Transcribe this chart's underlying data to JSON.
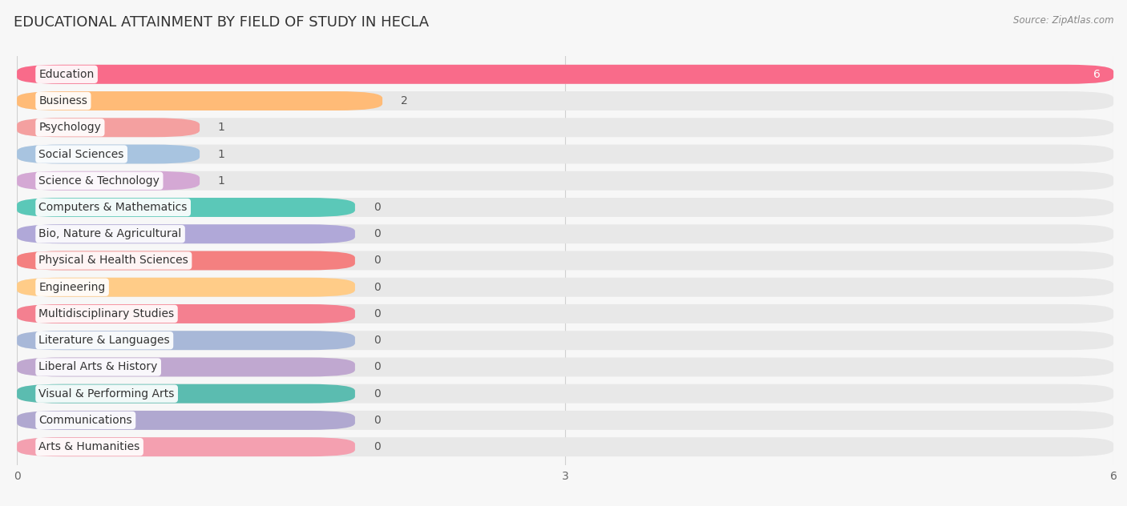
{
  "title": "EDUCATIONAL ATTAINMENT BY FIELD OF STUDY IN HECLA",
  "source": "Source: ZipAtlas.com",
  "categories": [
    "Education",
    "Business",
    "Psychology",
    "Social Sciences",
    "Science & Technology",
    "Computers & Mathematics",
    "Bio, Nature & Agricultural",
    "Physical & Health Sciences",
    "Engineering",
    "Multidisciplinary Studies",
    "Literature & Languages",
    "Liberal Arts & History",
    "Visual & Performing Arts",
    "Communications",
    "Arts & Humanities"
  ],
  "values": [
    6,
    2,
    1,
    1,
    1,
    0,
    0,
    0,
    0,
    0,
    0,
    0,
    0,
    0,
    0
  ],
  "colors": [
    "#F96B8A",
    "#FFBB77",
    "#F4A0A0",
    "#A8C4E0",
    "#D4A8D4",
    "#5BC8B8",
    "#B0A8D8",
    "#F48080",
    "#FFCC88",
    "#F48090",
    "#A8B8D8",
    "#C0A8D0",
    "#5BBCB0",
    "#B0A8D0",
    "#F4A0B0"
  ],
  "xlim": [
    0,
    6
  ],
  "xticks": [
    0,
    3,
    6
  ],
  "background_color": "#f7f7f7",
  "bar_bg_color": "#e8e8e8",
  "zero_bar_width": 1.85,
  "title_fontsize": 13,
  "label_fontsize": 10,
  "value_fontsize": 10
}
